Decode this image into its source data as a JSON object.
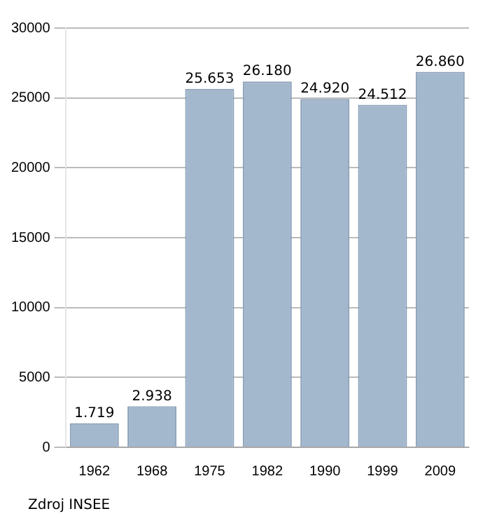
{
  "chart_data": {
    "type": "bar",
    "categories": [
      "1962",
      "1968",
      "1975",
      "1982",
      "1990",
      "1999",
      "2009"
    ],
    "values": [
      1719,
      2938,
      25653,
      26180,
      24920,
      24512,
      26860
    ],
    "value_labels": [
      "1.719",
      "2.938",
      "25.653",
      "26.180",
      "24.920",
      "24.512",
      "26.860"
    ],
    "color": "#a3b7cd",
    "ylim": [
      0,
      30000
    ],
    "yticks": [
      0,
      5000,
      10000,
      15000,
      20000,
      25000,
      30000
    ],
    "grid": "y",
    "annotations": [
      "Zdroj INSEE"
    ]
  }
}
